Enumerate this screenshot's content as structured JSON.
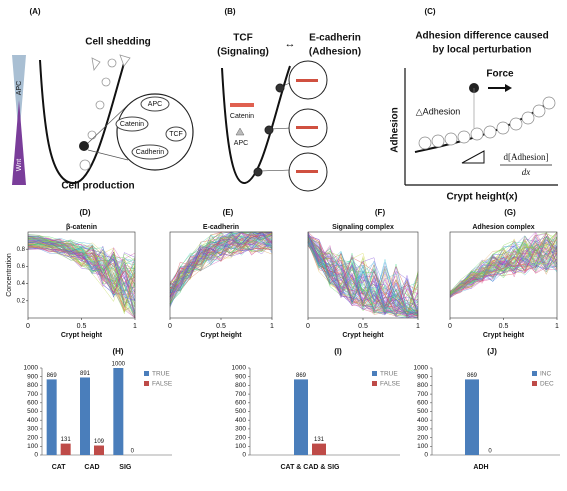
{
  "diagrams": {
    "a": {
      "panel": "(A)",
      "shedding": "Cell shedding",
      "apc_gradient": "APC",
      "wnt_gradient": "Wnt",
      "apc": "APC",
      "catenin": "Catenin",
      "tcf": "TCF",
      "cadherin": "Cadherin",
      "production": "Cell production"
    },
    "b": {
      "panel": "(B)",
      "tcf": "TCF",
      "signaling": "(Signaling)",
      "ecadherin": "E-cadherin",
      "adhesion": "(Adhesion)",
      "catenin": "Catenin",
      "apc": "APC"
    },
    "c": {
      "panel": "(C)",
      "title_1": "Adhesion difference caused",
      "title_2": "by local perturbation",
      "force": "Force",
      "delta": "△Adhesion",
      "ylabel": "Adhesion",
      "xlabel": "Crypt height(x)",
      "numerator": "d[Adhesion]",
      "denominator": "dx"
    }
  },
  "chart_data": [
    {
      "type": "line",
      "panel": "(D)",
      "title": "β-catenin",
      "ylabel": "Concentration",
      "xlabel": "Crypt height",
      "xlim": [
        0,
        1
      ],
      "xticks": [
        0,
        0.5,
        1
      ],
      "ylim": [
        0,
        1
      ],
      "yticks": [
        0.2,
        0.4,
        0.6,
        0.8
      ]
    },
    {
      "type": "line",
      "panel": "(E)",
      "title": "E-cadherin",
      "xlabel": "Crypt height",
      "xlim": [
        0,
        1
      ],
      "xticks": [
        0,
        0.5,
        1
      ],
      "ylim": [
        0,
        1
      ]
    },
    {
      "type": "line",
      "panel": "(F)",
      "title": "Signaling complex",
      "xlabel": "Crypt height",
      "xlim": [
        0,
        1
      ],
      "xticks": [
        0,
        0.5,
        1
      ],
      "ylim": [
        0,
        1
      ]
    },
    {
      "type": "line",
      "panel": "(G)",
      "title": "Adhesion complex",
      "xlabel": "Crypt height",
      "xlim": [
        0,
        1
      ],
      "xticks": [
        0,
        0.5,
        1
      ],
      "ylim": [
        0,
        1
      ]
    },
    {
      "type": "bar",
      "panel": "(H)",
      "categories": [
        "CAT",
        "CAD",
        "SIG"
      ],
      "series": [
        {
          "name": "TRUE",
          "color": "#4a7ebb",
          "values": [
            869,
            891,
            1000
          ]
        },
        {
          "name": "FALSE",
          "color": "#be4b48",
          "values": [
            131,
            109,
            0
          ]
        }
      ],
      "ylim": [
        0,
        1000
      ],
      "yticks": [
        0,
        100,
        200,
        300,
        400,
        500,
        600,
        700,
        800,
        900,
        1000
      ],
      "legend": "top-right"
    },
    {
      "type": "bar",
      "panel": "(I)",
      "categories": [
        "CAT & CAD & SIG"
      ],
      "series": [
        {
          "name": "TRUE",
          "color": "#4a7ebb",
          "values": [
            869
          ]
        },
        {
          "name": "FALSE",
          "color": "#be4b48",
          "values": [
            131
          ]
        }
      ],
      "ylim": [
        0,
        1000
      ],
      "yticks": [
        0,
        100,
        200,
        300,
        400,
        500,
        600,
        700,
        800,
        900,
        1000
      ],
      "legend": "top-right"
    },
    {
      "type": "bar",
      "panel": "(J)",
      "categories": [
        "ADH"
      ],
      "series": [
        {
          "name": "INC",
          "color": "#4a7ebb",
          "values": [
            869
          ]
        },
        {
          "name": "DEC",
          "color": "#be4b48",
          "values": [
            0
          ]
        }
      ],
      "ylim": [
        0,
        1000
      ],
      "yticks": [
        0,
        100,
        200,
        300,
        400,
        500,
        600,
        700,
        800,
        900,
        1000
      ],
      "legend": "top-right"
    }
  ]
}
